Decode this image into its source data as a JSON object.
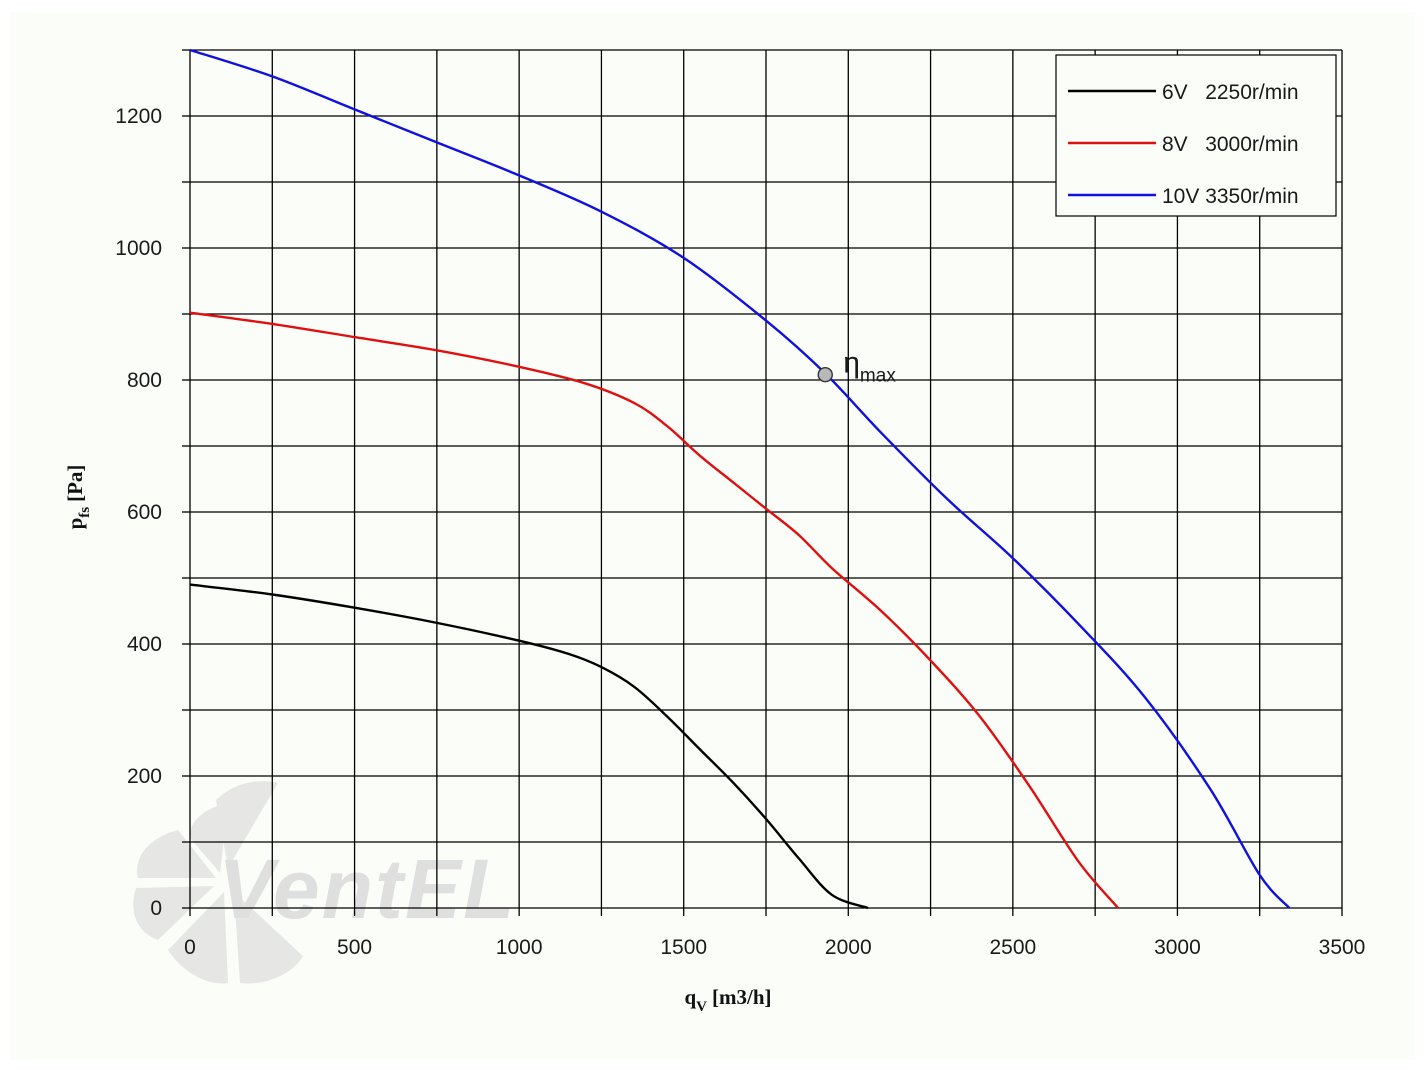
{
  "chart_data": {
    "type": "line",
    "title": "",
    "xlabel": {
      "symbol": "q",
      "subscript": "V",
      "unit": "[m3/h]"
    },
    "ylabel": {
      "symbol": "p",
      "subscript": "fs",
      "unit": "[Pa]"
    },
    "xlim": [
      0,
      3500
    ],
    "ylim": [
      0,
      1300
    ],
    "x_ticks": [
      0,
      500,
      1000,
      1500,
      2000,
      2500,
      3000,
      3500
    ],
    "y_ticks": [
      0,
      200,
      400,
      600,
      800,
      1000,
      1200
    ],
    "grid": true,
    "legend_position": "top-right",
    "series": [
      {
        "name": "6V   2250r/min",
        "color": "#000000",
        "points": [
          [
            0,
            490
          ],
          [
            250,
            475
          ],
          [
            500,
            455
          ],
          [
            750,
            432
          ],
          [
            1000,
            405
          ],
          [
            1150,
            385
          ],
          [
            1250,
            365
          ],
          [
            1350,
            335
          ],
          [
            1450,
            290
          ],
          [
            1550,
            240
          ],
          [
            1650,
            190
          ],
          [
            1750,
            135
          ],
          [
            1850,
            75
          ],
          [
            1950,
            20
          ],
          [
            2060,
            0
          ]
        ]
      },
      {
        "name": "8V   3000r/min",
        "color": "#e01010",
        "points": [
          [
            0,
            902
          ],
          [
            250,
            885
          ],
          [
            500,
            865
          ],
          [
            750,
            845
          ],
          [
            1000,
            820
          ],
          [
            1200,
            795
          ],
          [
            1350,
            765
          ],
          [
            1450,
            730
          ],
          [
            1550,
            685
          ],
          [
            1650,
            645
          ],
          [
            1750,
            605
          ],
          [
            1850,
            565
          ],
          [
            1950,
            515
          ],
          [
            2100,
            450
          ],
          [
            2250,
            375
          ],
          [
            2400,
            290
          ],
          [
            2550,
            185
          ],
          [
            2700,
            70
          ],
          [
            2820,
            0
          ]
        ]
      },
      {
        "name": "10V 3350r/min",
        "color": "#1010e0",
        "points": [
          [
            0,
            1300
          ],
          [
            250,
            1260
          ],
          [
            500,
            1210
          ],
          [
            750,
            1160
          ],
          [
            1000,
            1110
          ],
          [
            1250,
            1055
          ],
          [
            1500,
            985
          ],
          [
            1750,
            890
          ],
          [
            1930,
            810
          ],
          [
            2100,
            720
          ],
          [
            2300,
            620
          ],
          [
            2500,
            530
          ],
          [
            2700,
            430
          ],
          [
            2900,
            320
          ],
          [
            3100,
            180
          ],
          [
            3250,
            50
          ],
          [
            3340,
            0
          ]
        ]
      }
    ],
    "annotations": [
      {
        "text": "η",
        "subscript": "max",
        "x": 1930,
        "y": 808
      }
    ],
    "watermark": "VentEL"
  }
}
